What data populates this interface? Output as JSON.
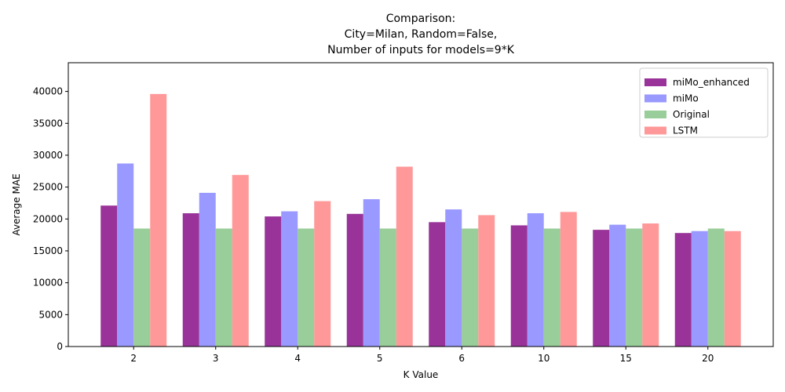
{
  "chart_data": {
    "type": "bar",
    "title_lines": [
      "Comparison:",
      "City=Milan, Random=False,",
      "Number of inputs for models=9*K"
    ],
    "xlabel": "K Value",
    "ylabel": "Average MAE",
    "categories": [
      "2",
      "3",
      "4",
      "5",
      "6",
      "10",
      "15",
      "20"
    ],
    "ylim": [
      0,
      44500
    ],
    "yticks": [
      0,
      5000,
      10000,
      15000,
      20000,
      25000,
      30000,
      35000,
      40000
    ],
    "grid": false,
    "legend_position": "top-right",
    "series": [
      {
        "name": "miMo_enhanced",
        "color": "#800080",
        "values": [
          22100,
          20900,
          20400,
          20800,
          19500,
          19000,
          18300,
          17800
        ]
      },
      {
        "name": "miMo",
        "color": "#8080ff",
        "values": [
          28700,
          24100,
          21200,
          23100,
          21500,
          20900,
          19100,
          18100
        ]
      },
      {
        "name": "Original",
        "color": "#80c080",
        "values": [
          18500,
          18500,
          18500,
          18500,
          18500,
          18500,
          18500,
          18500
        ]
      },
      {
        "name": "LSTM",
        "color": "#ff8080",
        "values": [
          39600,
          26900,
          22800,
          28200,
          20600,
          21100,
          19300,
          18100
        ]
      }
    ]
  }
}
